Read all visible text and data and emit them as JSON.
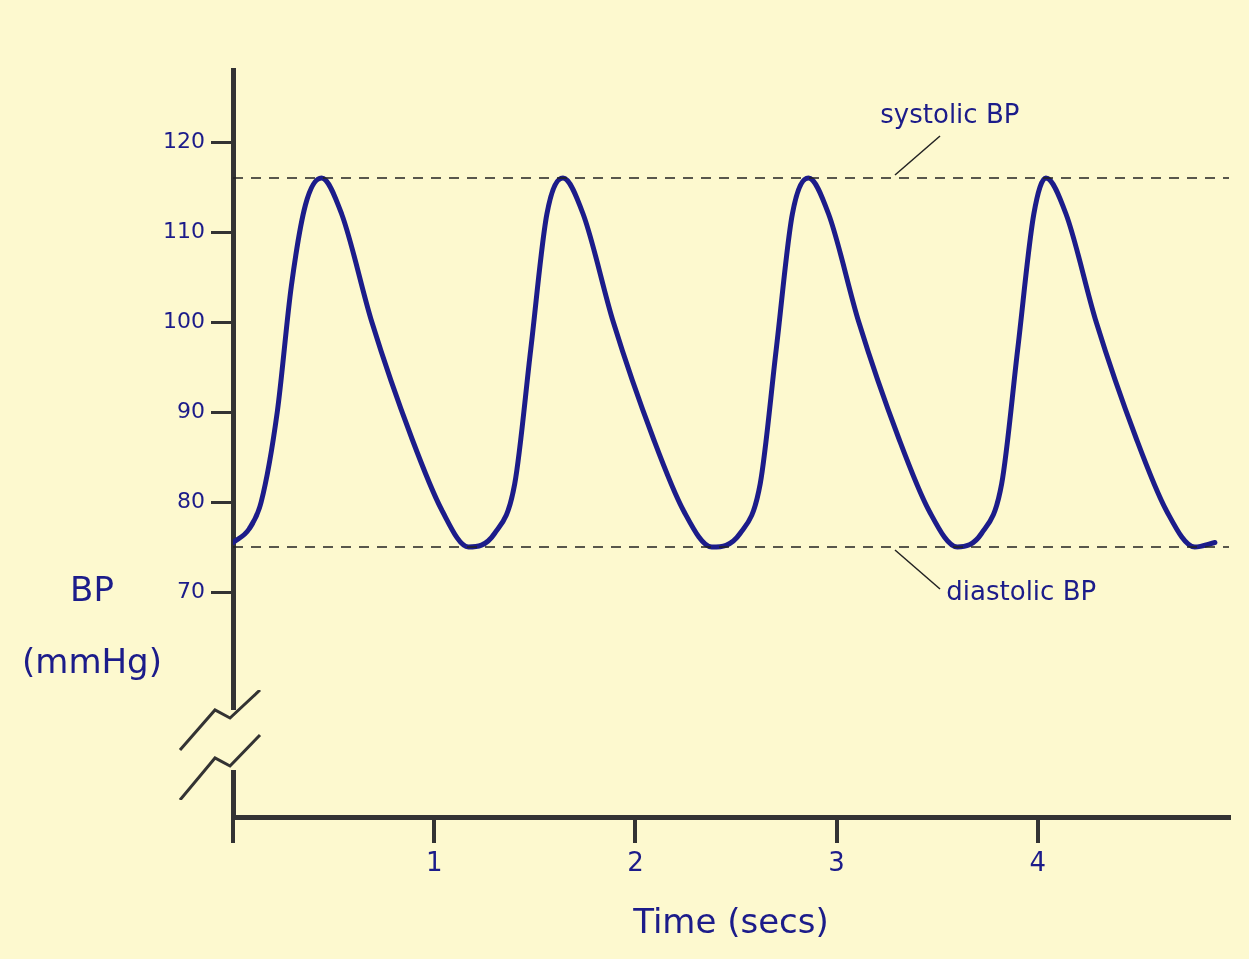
{
  "chart_data": {
    "type": "line",
    "xlabel": "Time (secs)",
    "ylabel": "BP (mmHg)",
    "x": [
      0,
      0.08,
      0.14,
      0.22,
      0.29,
      0.36,
      0.44,
      0.54,
      0.69,
      0.89,
      1.04,
      1.17,
      1.3,
      1.4,
      1.48,
      1.56,
      1.64,
      1.74,
      1.89,
      2.09,
      2.24,
      2.38,
      2.52,
      2.62,
      2.7,
      2.78,
      2.86,
      2.96,
      3.11,
      3.31,
      3.46,
      3.6,
      3.72,
      3.82,
      3.9,
      3.98,
      4.04,
      4.14,
      4.29,
      4.49,
      4.64,
      4.78,
      4.88
    ],
    "series": [
      {
        "color": "#1c1c8a",
        "values": [
          75.5,
          77,
          80,
          90,
          104,
          113,
          116,
          112,
          100,
          87,
          79,
          75,
          76.5,
          82,
          97,
          112,
          116,
          112,
          100,
          87,
          79,
          75,
          76.5,
          82,
          97,
          112,
          116,
          112,
          100,
          87,
          79,
          75,
          76.5,
          82,
          97,
          112,
          116,
          112,
          100,
          87,
          79,
          75,
          75.5
        ]
      }
    ],
    "xlim": [
      0,
      4.95
    ],
    "xticks": [
      {
        "value": 0,
        "label": null
      },
      1,
      2,
      3,
      4
    ],
    "ylim": [
      45,
      128
    ],
    "yticks": [
      70,
      80,
      90,
      100,
      110,
      120
    ],
    "ref_lines": [
      {
        "axis": "y",
        "value": 116,
        "label": "systolic BP",
        "color": "#222222",
        "line_style": "dashed"
      },
      {
        "axis": "y",
        "value": 75,
        "label": "diastolic BP",
        "color": "#222222",
        "line_style": "dashed"
      }
    ],
    "grid": false,
    "legend": false,
    "marker": "none",
    "line_style": "solid"
  }
}
